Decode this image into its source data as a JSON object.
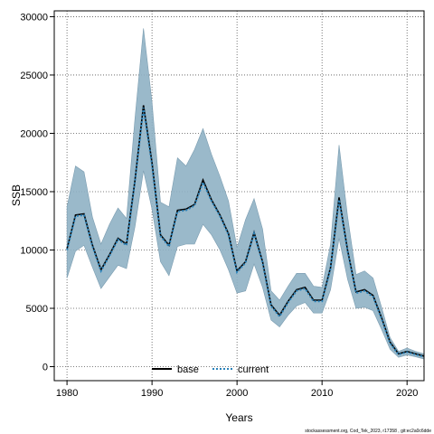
{
  "chart_data": {
    "type": "line",
    "title": "",
    "xlabel": "Years",
    "ylabel": "SSB",
    "xlim": [
      1978.5,
      2022
    ],
    "ylim": [
      -1200,
      30500
    ],
    "x_ticks": [
      1980,
      1990,
      2000,
      2010,
      2020
    ],
    "y_ticks": [
      0,
      5000,
      10000,
      15000,
      20000,
      25000,
      30000
    ],
    "grid": true,
    "legend_position": "bottom",
    "caption": "stockassessment.org, Cod_Tek_2023, r17358 , git:ec2a0c6dde",
    "x": [
      1980,
      1981,
      1982,
      1983,
      1984,
      1985,
      1986,
      1987,
      1988,
      1989,
      1990,
      1991,
      1992,
      1993,
      1994,
      1995,
      1996,
      1997,
      1998,
      1999,
      2000,
      2001,
      2002,
      2003,
      2004,
      2005,
      2006,
      2007,
      2008,
      2009,
      2010,
      2011,
      2012,
      2013,
      2014,
      2015,
      2016,
      2017,
      2018,
      2019,
      2020,
      2021,
      2022
    ],
    "series": [
      {
        "name": "base",
        "color": "#000000",
        "style": "solid",
        "values": [
          10100,
          13000,
          13100,
          10400,
          8300,
          9600,
          11000,
          10500,
          16000,
          22400,
          17500,
          11300,
          10400,
          13400,
          13500,
          13900,
          16000,
          14300,
          13000,
          11400,
          8200,
          9000,
          11500,
          9000,
          5300,
          4400,
          5600,
          6600,
          6800,
          5700,
          5700,
          8500,
          14500,
          10000,
          6400,
          6600,
          6100,
          4200,
          2100,
          1100,
          1300,
          1100,
          900
        ]
      },
      {
        "name": "current",
        "color": "#2b83ba",
        "style": "dotted",
        "values": [
          10000,
          12900,
          13000,
          10300,
          8200,
          9500,
          10900,
          10400,
          15900,
          22200,
          17300,
          11200,
          10300,
          13300,
          13400,
          13800,
          15800,
          14200,
          12900,
          11300,
          8100,
          8900,
          11400,
          8900,
          5200,
          4300,
          5500,
          6500,
          6700,
          5600,
          5600,
          8400,
          14300,
          9900,
          6300,
          6500,
          6000,
          4100,
          2000,
          1050,
          1250,
          1050,
          850
        ]
      }
    ],
    "band": {
      "color": "#5b9bd5",
      "lower": [
        7600,
        9900,
        10400,
        8500,
        6700,
        7700,
        8700,
        8400,
        12000,
        16800,
        13500,
        9000,
        7800,
        10300,
        10500,
        10500,
        12200,
        11300,
        10000,
        8300,
        6300,
        6500,
        8800,
        6800,
        4000,
        3400,
        4400,
        5200,
        5500,
        4600,
        4600,
        6600,
        11000,
        7500,
        5000,
        5100,
        4800,
        3200,
        1500,
        800,
        1000,
        850,
        650
      ],
      "upper": [
        13700,
        17200,
        16700,
        12800,
        10500,
        12200,
        13600,
        12700,
        21300,
        29000,
        22700,
        14100,
        13700,
        17900,
        17200,
        18600,
        20400,
        18200,
        16300,
        14200,
        10200,
        12600,
        14400,
        11800,
        6500,
        5700,
        6900,
        8000,
        8000,
        6900,
        6800,
        10500,
        19000,
        12900,
        7900,
        8200,
        7600,
        5100,
        2500,
        1300,
        1600,
        1300,
        1100
      ]
    }
  }
}
